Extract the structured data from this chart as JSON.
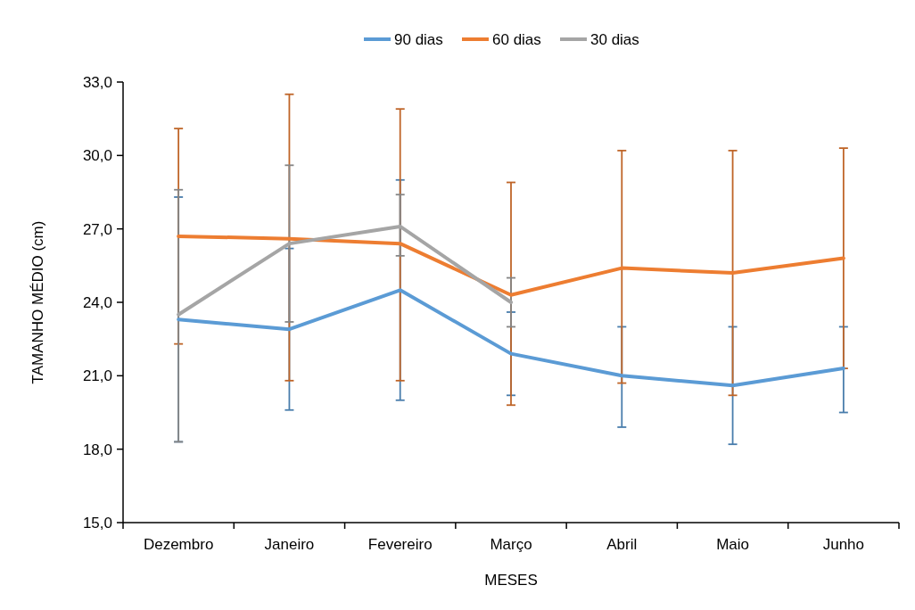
{
  "chart_data": {
    "type": "line",
    "xlabel": "MESES",
    "ylabel": "TAMANHO MÉDIO (cm)",
    "categories": [
      "Dezembro",
      "Janeiro",
      "Fevereiro",
      "Março",
      "Abril",
      "Maio",
      "Junho"
    ],
    "ylim": [
      15,
      33
    ],
    "yticks": [
      {
        "value": 15,
        "label": "15,0"
      },
      {
        "value": 18,
        "label": "18,0"
      },
      {
        "value": 21,
        "label": "21,0"
      },
      {
        "value": 24,
        "label": "24,0"
      },
      {
        "value": 27,
        "label": "27,0"
      },
      {
        "value": 30,
        "label": "30,0"
      },
      {
        "value": 33,
        "label": "33,0"
      }
    ],
    "grid": false,
    "legend": "top",
    "marker": "none",
    "line_style": "solid",
    "series": [
      {
        "name": "90 dias",
        "color": "#5b9bd5",
        "values": [
          23.3,
          22.9,
          24.5,
          21.9,
          21.0,
          20.6,
          21.3
        ],
        "errors": [
          [
            18.3,
            28.3
          ],
          [
            19.6,
            26.2
          ],
          [
            20.0,
            29.0
          ],
          [
            20.2,
            23.6
          ],
          [
            18.9,
            23.0
          ],
          [
            18.2,
            23.0
          ],
          [
            19.5,
            23.0
          ]
        ]
      },
      {
        "name": "60 dias",
        "color": "#ed7d31",
        "values": [
          26.7,
          26.6,
          26.4,
          24.3,
          25.4,
          25.2,
          25.8
        ],
        "errors": [
          [
            22.3,
            31.1
          ],
          [
            20.8,
            32.5
          ],
          [
            20.8,
            31.9
          ],
          [
            19.8,
            28.9
          ],
          [
            20.7,
            30.2
          ],
          [
            20.2,
            30.2
          ],
          [
            21.3,
            30.3
          ]
        ]
      },
      {
        "name": "30 dias",
        "color": "#a5a5a5",
        "values": [
          23.5,
          26.4,
          27.1,
          24.0,
          null,
          null,
          null
        ],
        "errors": [
          [
            18.3,
            28.6
          ],
          [
            23.2,
            29.6
          ],
          [
            25.9,
            28.4
          ],
          [
            23.0,
            25.0
          ],
          null,
          null,
          null
        ]
      }
    ]
  }
}
